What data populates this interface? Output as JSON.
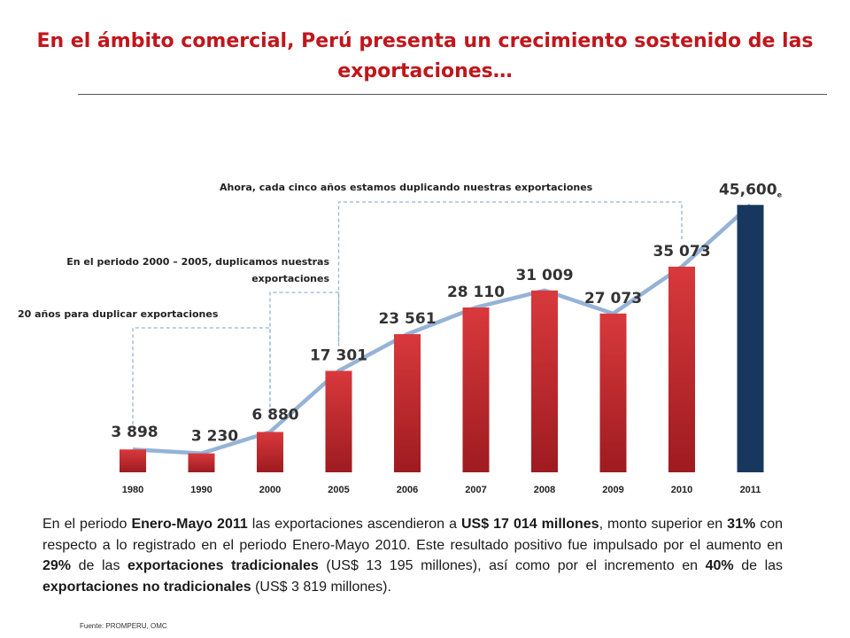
{
  "title": "En el ámbito comercial, Perú presenta un crecimiento sostenido de las exportaciones…",
  "chart_data": {
    "type": "bar",
    "categories": [
      "1980",
      "1990",
      "2000",
      "2005",
      "2006",
      "2007",
      "2008",
      "2009",
      "2010",
      "2011"
    ],
    "values": [
      3898,
      3230,
      6880,
      17301,
      23561,
      28110,
      31009,
      27073,
      35073,
      45600
    ],
    "value_labels": [
      "3 898",
      "3 230",
      "6 880",
      "17 301",
      "23 561",
      "28 110",
      "31 009",
      "27 073",
      "35 073",
      "45,600"
    ],
    "estimate_marker": "e",
    "estimate_index": 9,
    "trend_line": true,
    "colors": {
      "bar": "#c8262b",
      "bar_highlight": "#17375e",
      "trend_line": "#95b3d7",
      "bracket": "#95b3d7"
    },
    "annotations": [
      {
        "text": "20 años para duplicar exportaciones",
        "from": "1980",
        "to": "2000"
      },
      {
        "text_lines": [
          "En el periodo 2000 – 2005, duplicamos nuestras",
          "exportaciones"
        ],
        "from": "2000",
        "to": "2005"
      },
      {
        "text": "Ahora, cada cinco años estamos duplicando nuestras exportaciones",
        "from": "2005",
        "to": "2010"
      }
    ],
    "ylim": [
      0,
      47000
    ],
    "grid": false,
    "legend": "none"
  },
  "body": {
    "p1": "En el periodo ",
    "b1": "Enero-Mayo 2011",
    "p2": " las exportaciones ascendieron a ",
    "b2": "US$ 17 014 millones",
    "p3": ", monto superior en ",
    "b3": "31%",
    "p4": " con respecto a lo registrado en el periodo Enero-Mayo 2010. Este resultado positivo fue impulsado por el aumento en ",
    "b4": "29%",
    "p5": " de las ",
    "b5": "exportaciones tradicionales",
    "p6": " (US$ 13 195 millones), así como por el incremento en ",
    "b6": "40%",
    "p7": " de las ",
    "b7": "exportaciones no tradicionales",
    "p8": " (US$ 3 819 millones)."
  },
  "source": "Fuente: PROMPERU, OMC"
}
